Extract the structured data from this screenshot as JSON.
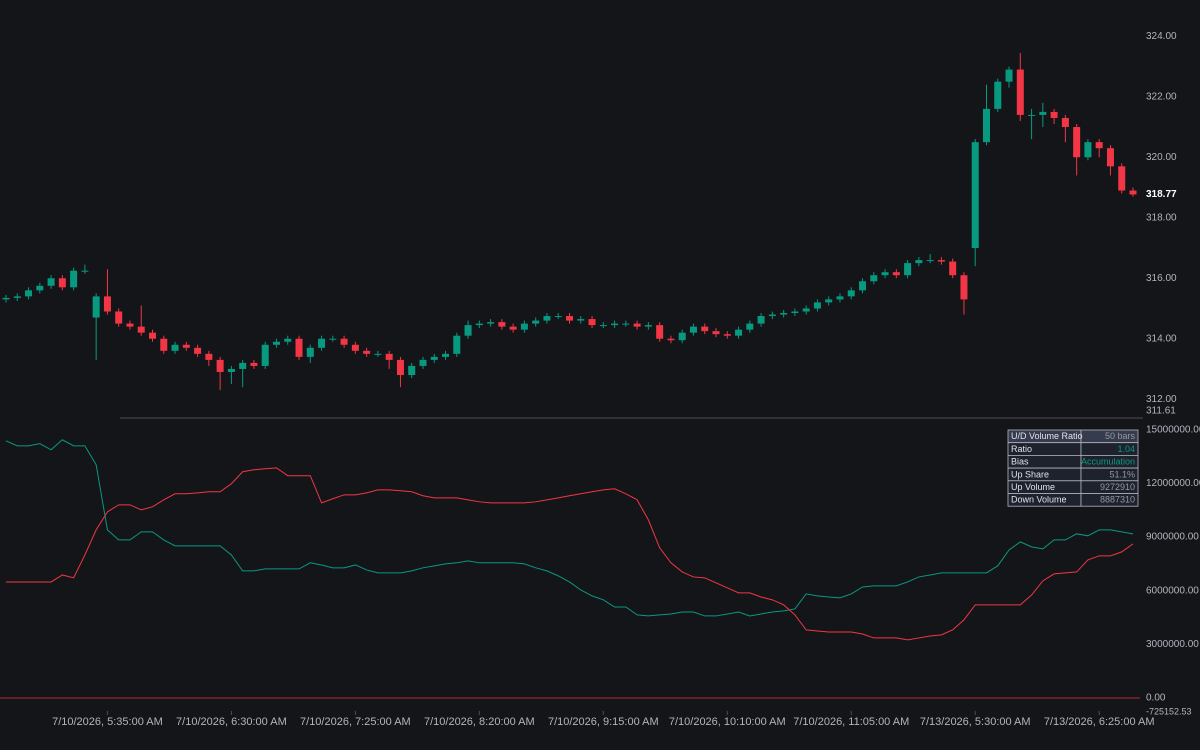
{
  "chart_data": [
    {
      "type": "candlestick",
      "open": [
        315.3,
        315.35,
        315.4,
        315.6,
        315.75,
        316.0,
        315.7,
        316.25,
        314.7,
        315.4,
        314.9,
        314.5,
        314.4,
        314.2,
        314.0,
        313.6,
        313.8,
        313.7,
        313.5,
        313.3,
        312.9,
        313.0,
        313.2,
        313.1,
        313.8,
        313.9,
        314.0,
        313.4,
        313.7,
        314.0,
        314.0,
        313.8,
        313.6,
        313.5,
        313.5,
        313.3,
        312.8,
        313.1,
        313.3,
        313.4,
        313.5,
        314.1,
        314.45,
        314.5,
        314.55,
        314.4,
        314.3,
        314.5,
        314.6,
        314.75,
        314.75,
        314.6,
        314.65,
        314.45,
        314.45,
        314.5,
        314.5,
        314.4,
        314.45,
        314.0,
        313.95,
        314.2,
        314.4,
        314.25,
        314.15,
        314.1,
        314.3,
        314.5,
        314.75,
        314.8,
        314.85,
        314.9,
        315.0,
        315.2,
        315.3,
        315.4,
        315.6,
        315.9,
        316.1,
        316.2,
        316.1,
        316.5,
        316.6,
        316.6,
        316.55,
        316.1,
        317.0,
        320.5,
        321.6,
        322.5,
        322.9,
        321.4,
        321.4,
        321.5,
        321.3,
        321.0,
        320.0,
        320.5,
        320.3,
        319.7,
        318.9
      ],
      "high": [
        315.45,
        315.5,
        315.7,
        315.85,
        316.1,
        316.1,
        316.35,
        316.45,
        315.5,
        316.3,
        315.0,
        314.6,
        315.1,
        314.3,
        314.1,
        313.9,
        313.9,
        313.8,
        313.6,
        313.4,
        313.1,
        313.3,
        313.3,
        313.9,
        314.0,
        314.1,
        314.1,
        313.8,
        314.1,
        314.1,
        314.1,
        313.9,
        313.7,
        313.6,
        313.6,
        313.4,
        313.2,
        313.4,
        313.5,
        313.6,
        314.2,
        314.6,
        314.6,
        314.65,
        314.65,
        314.5,
        314.6,
        314.7,
        314.85,
        314.85,
        314.85,
        314.75,
        314.75,
        314.55,
        314.6,
        314.6,
        314.6,
        314.55,
        314.55,
        314.1,
        314.3,
        314.5,
        314.5,
        314.35,
        314.25,
        314.4,
        314.6,
        314.85,
        314.9,
        314.95,
        315.0,
        315.1,
        315.3,
        315.4,
        315.5,
        315.7,
        316.0,
        316.2,
        316.3,
        316.3,
        316.6,
        316.7,
        316.8,
        316.7,
        316.65,
        316.2,
        320.6,
        322.4,
        322.6,
        323.0,
        323.45,
        321.6,
        321.8,
        321.6,
        321.4,
        321.1,
        320.6,
        320.6,
        320.4,
        319.8,
        319.0
      ],
      "low": [
        315.2,
        315.25,
        315.3,
        315.5,
        315.65,
        315.6,
        315.6,
        316.15,
        313.3,
        314.8,
        314.4,
        314.3,
        314.1,
        313.9,
        313.5,
        313.5,
        313.6,
        313.4,
        313.1,
        312.3,
        312.5,
        312.4,
        313.0,
        313.0,
        313.7,
        313.8,
        313.3,
        313.2,
        313.6,
        313.9,
        313.7,
        313.5,
        313.4,
        313.4,
        313.0,
        312.4,
        312.7,
        313.0,
        313.2,
        313.3,
        313.4,
        314.0,
        314.35,
        314.4,
        314.3,
        314.2,
        314.2,
        314.4,
        314.5,
        314.65,
        314.5,
        314.5,
        314.35,
        314.35,
        314.35,
        314.4,
        314.3,
        314.3,
        313.9,
        313.85,
        313.85,
        314.1,
        314.15,
        314.05,
        314.0,
        314.0,
        314.2,
        314.4,
        314.65,
        314.7,
        314.75,
        314.8,
        314.9,
        315.1,
        315.2,
        315.3,
        315.5,
        315.8,
        316.0,
        316.0,
        316.0,
        316.4,
        316.5,
        316.45,
        316.0,
        314.8,
        316.4,
        320.4,
        321.5,
        322.3,
        321.2,
        320.6,
        321.0,
        321.1,
        320.5,
        319.4,
        319.9,
        320.0,
        319.4,
        318.8,
        318.7
      ],
      "close": [
        315.35,
        315.4,
        315.6,
        315.75,
        316.0,
        315.7,
        316.25,
        316.25,
        315.4,
        314.9,
        314.5,
        314.4,
        314.2,
        314.0,
        313.6,
        313.8,
        313.7,
        313.5,
        313.3,
        312.9,
        313.0,
        313.2,
        313.1,
        313.8,
        313.9,
        314.0,
        313.4,
        313.7,
        314.0,
        314.0,
        313.8,
        313.6,
        313.5,
        313.5,
        313.3,
        312.8,
        313.1,
        313.3,
        313.4,
        313.5,
        314.1,
        314.45,
        314.5,
        314.55,
        314.4,
        314.3,
        314.5,
        314.6,
        314.75,
        314.75,
        314.6,
        314.65,
        314.45,
        314.45,
        314.5,
        314.5,
        314.4,
        314.45,
        314.0,
        313.95,
        314.2,
        314.4,
        314.25,
        314.15,
        314.1,
        314.3,
        314.5,
        314.75,
        314.8,
        314.85,
        314.9,
        315.0,
        315.2,
        315.3,
        315.4,
        315.6,
        315.9,
        316.1,
        316.2,
        316.1,
        316.5,
        316.6,
        316.6,
        316.55,
        316.1,
        315.3,
        320.5,
        321.6,
        322.5,
        322.9,
        321.4,
        321.4,
        321.5,
        321.3,
        321.0,
        320.0,
        320.5,
        320.3,
        319.7,
        318.9,
        318.77
      ],
      "up_color": "#089981",
      "down_color": "#f23645",
      "ylim": [
        311.61,
        325.2
      ],
      "yticks": [
        {
          "value": 312,
          "label": "312.00"
        },
        {
          "value": 314,
          "label": "314.00"
        },
        {
          "value": 316,
          "label": "316.00"
        },
        {
          "value": 318,
          "label": "318.00"
        },
        {
          "value": 320,
          "label": "320.00"
        },
        {
          "value": 322,
          "label": "322.00"
        },
        {
          "value": 324,
          "label": "324.00"
        }
      ],
      "last_price": 318.77,
      "xticks": [
        {
          "value": 9,
          "label": "7/10/2026, 5:35:00 AM"
        },
        {
          "value": 20,
          "label": "7/10/2026, 6:30:00 AM"
        },
        {
          "value": 31,
          "label": "7/10/2026, 7:25:00 AM"
        },
        {
          "value": 42,
          "label": "7/10/2026, 8:20:00 AM"
        },
        {
          "value": 53,
          "label": "7/10/2026, 9:15:00 AM"
        },
        {
          "value": 64,
          "label": "7/10/2026, 10:10:00 AM"
        },
        {
          "value": 75,
          "label": "7/10/2026, 11:05:00 AM"
        },
        {
          "value": 86,
          "label": "7/13/2026, 5:30:00 AM"
        },
        {
          "value": 97,
          "label": "7/13/2026, 6:25:00 AM"
        }
      ]
    },
    {
      "type": "line",
      "series": [
        {
          "color": "#089981",
          "values": [
            14380000,
            14100000,
            14100000,
            14220000,
            13880000,
            14440000,
            14100000,
            14100000,
            13040000,
            9400000,
            8840000,
            8840000,
            9290000,
            9290000,
            8840000,
            8510000,
            8510000,
            8510000,
            8510000,
            8510000,
            8000000,
            7110000,
            7110000,
            7220000,
            7220000,
            7220000,
            7220000,
            7560000,
            7440000,
            7280000,
            7280000,
            7440000,
            7160000,
            7000000,
            7000000,
            7000000,
            7110000,
            7280000,
            7390000,
            7500000,
            7560000,
            7670000,
            7560000,
            7560000,
            7560000,
            7560000,
            7500000,
            7280000,
            7110000,
            6830000,
            6490000,
            6040000,
            5710000,
            5490000,
            5090000,
            5090000,
            4650000,
            4590000,
            4650000,
            4700000,
            4810000,
            4810000,
            4590000,
            4590000,
            4700000,
            4810000,
            4590000,
            4700000,
            4810000,
            4870000,
            4980000,
            5820000,
            5710000,
            5650000,
            5600000,
            5820000,
            6210000,
            6270000,
            6270000,
            6270000,
            6490000,
            6770000,
            6880000,
            7000000,
            7000000,
            7000000,
            7000000,
            7000000,
            7390000,
            8280000,
            8730000,
            8450000,
            8340000,
            8840000,
            8840000,
            9180000,
            9070000,
            9400000,
            9400000,
            9290000,
            9180000
          ]
        },
        {
          "color": "#f23645",
          "values": [
            6490000,
            6490000,
            6490000,
            6490000,
            6490000,
            6880000,
            6720000,
            8000000,
            9400000,
            10410000,
            10800000,
            10800000,
            10520000,
            10690000,
            11080000,
            11420000,
            11420000,
            11470000,
            11530000,
            11530000,
            11980000,
            12650000,
            12760000,
            12820000,
            12870000,
            12430000,
            12430000,
            12430000,
            10910000,
            11140000,
            11360000,
            11360000,
            11470000,
            11640000,
            11640000,
            11590000,
            11530000,
            11310000,
            11190000,
            11190000,
            11190000,
            11080000,
            10970000,
            10910000,
            10910000,
            10910000,
            10910000,
            10970000,
            11080000,
            11190000,
            11310000,
            11420000,
            11530000,
            11640000,
            11700000,
            11420000,
            11080000,
            9960000,
            8400000,
            7560000,
            7050000,
            6770000,
            6720000,
            6440000,
            6160000,
            5880000,
            5880000,
            5650000,
            5490000,
            5210000,
            4650000,
            3810000,
            3750000,
            3690000,
            3690000,
            3690000,
            3580000,
            3360000,
            3360000,
            3360000,
            3250000,
            3360000,
            3470000,
            3530000,
            3810000,
            4370000,
            5210000,
            5210000,
            5210000,
            5210000,
            5210000,
            5760000,
            6550000,
            6940000,
            7000000,
            7050000,
            7720000,
            7950000,
            7950000,
            8170000,
            8620000
          ]
        }
      ],
      "ylim": [
        -725152.53,
        15600000
      ],
      "yticks": [
        {
          "value": 0,
          "label": "0.00"
        },
        {
          "value": 3000000,
          "label": "3000000.00"
        },
        {
          "value": 6000000,
          "label": "6000000.00"
        },
        {
          "value": 9000000,
          "label": "9000000.00"
        },
        {
          "value": 12000000,
          "label": "12000000.00"
        },
        {
          "value": 15000000,
          "label": "15000000.00"
        }
      ],
      "table": {
        "header": [
          "U/D Volume Ratio",
          "50 bars"
        ],
        "rows": [
          [
            "Ratio",
            "1.04"
          ],
          [
            "Bias",
            "Accumulation"
          ],
          [
            "Up Share",
            "51.1%"
          ],
          [
            "Up Volume",
            "9272910"
          ],
          [
            "Down Volume",
            "8887310"
          ]
        ]
      }
    }
  ]
}
